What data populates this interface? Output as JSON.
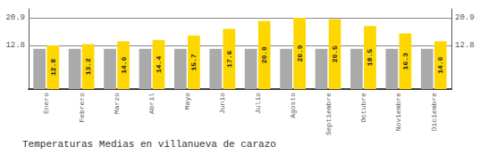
{
  "chart_data": {
    "type": "bar",
    "title": "Temperaturas Medias en villanueva de carazo",
    "categories": [
      "Enero",
      "Febrero",
      "Marzo",
      "Abril",
      "Mayo",
      "Junio",
      "Julio",
      "Agosto",
      "Septiembre",
      "Octubre",
      "Noviembre",
      "Diciembre"
    ],
    "series": [
      {
        "color": "#AAAAAA",
        "values": [
          11.8,
          11.8,
          11.8,
          11.8,
          11.8,
          11.8,
          11.8,
          11.8,
          11.8,
          11.8,
          11.8,
          11.8
        ]
      },
      {
        "color": "#FFD700",
        "values": [
          12.8,
          13.2,
          14.0,
          14.4,
          15.7,
          17.6,
          20.0,
          20.9,
          20.5,
          18.5,
          16.3,
          14.0
        ],
        "value_labels": [
          "12.8",
          "13.2",
          "14.0",
          "14.4",
          "15.7",
          "17.6",
          "20.0",
          "20.9",
          "20.5",
          "18.5",
          "16.3",
          "14.0"
        ],
        "data_labels": true
      }
    ],
    "ylim": [
      0,
      23.5
    ],
    "yticks": [
      12.8,
      20.9
    ],
    "y2lim": [
      0,
      23.5
    ],
    "y2ticks": [
      12.8,
      20.9
    ],
    "grid": true
  }
}
